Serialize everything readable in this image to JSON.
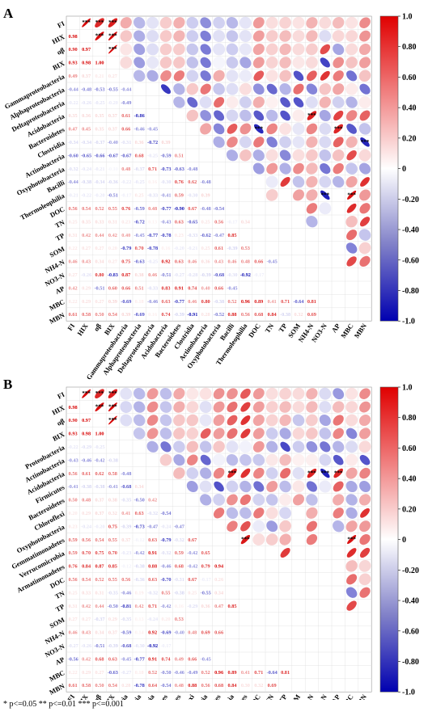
{
  "footnote": "* p<=0.05  ** p<=0.01  *** p<=0.001",
  "colors": {
    "positive": "#e00000",
    "negative": "#0000b0",
    "neutral": "#ffffff"
  },
  "chart_data": [
    {
      "type": "heatmap",
      "panel_label": "A",
      "style": "correlation matrix: lower triangle numeric coefficients, upper triangle ellipses",
      "variables": [
        "FI",
        "HIX",
        "αβ",
        "BIX",
        "Gammaproteobacteria",
        "Alphaproteobacteria",
        "Deltaproteobacteria",
        "Acidobacteria",
        "Bacteroidetes",
        "Clostridia",
        "Actinobacteria",
        "Oxyphotobacteria",
        "Bacilli",
        "Thermoleophilia",
        "DOC",
        "TN",
        "TP",
        "SOM",
        "NH4-N",
        "NO3-N",
        "AP",
        "MBC",
        "MBN"
      ],
      "colorbar": {
        "range": [
          -1,
          1
        ],
        "ticks": [
          "1.0",
          "0.80",
          "0.60",
          "0.40",
          "0.20",
          "0",
          "-0.20",
          "-0.40",
          "-0.60",
          "-0.80",
          "-1.0"
        ]
      },
      "lower_triangle": [
        [],
        [
          0.98
        ],
        [
          0.9,
          0.97
        ],
        [
          0.93,
          0.98,
          1.0
        ],
        [
          0.49,
          0.37,
          0.21,
          0.27
        ],
        [
          -0.44,
          -0.48,
          -0.53,
          -0.55,
          -0.44
        ],
        [
          -0.22,
          -0.26,
          -0.25,
          -0.2,
          -0.49
        ],
        [
          0.35,
          0.36,
          0.35,
          0.37,
          0.61,
          -0.86
        ],
        [
          0.47,
          0.45,
          0.35,
          0.37,
          0.66,
          -0.46,
          -0.45
        ],
        [
          -0.34,
          -0.34,
          -0.37,
          -0.4,
          -0.31,
          0.36,
          -0.72,
          0.39
        ],
        [
          -0.6,
          -0.65,
          -0.66,
          -0.67,
          -0.67,
          0.68,
          -0.25,
          -0.59,
          0.51
        ],
        [
          -0.32,
          -0.24,
          -0.21,
          -0.1,
          0.48,
          -0.37,
          0.71,
          -0.73,
          -0.63,
          -0.48
        ],
        [
          -0.44,
          -0.38,
          -0.34,
          -0.36,
          -0.22,
          -0.25,
          0.16,
          -0.3,
          0.76,
          0.62,
          -0.48
        ],
        [
          -0.21,
          -0.22,
          -0.2,
          -0.51,
          -0.17,
          0.25,
          -0.33,
          -0.41,
          0.59,
          -0.3,
          0.39
        ],
        [
          0.56,
          0.54,
          0.52,
          0.55,
          0.76,
          -0.59,
          0.48,
          -0.77,
          -0.9,
          0.67,
          -0.48,
          -0.54
        ],
        [
          0.25,
          0.35,
          0.33,
          0.31,
          0.23,
          -0.72,
          0.13,
          -0.43,
          0.63,
          -0.65,
          0.25,
          0.56,
          -0.17,
          0.34
        ],
        [
          0.31,
          0.42,
          0.44,
          0.42,
          0.4,
          -0.45,
          -0.77,
          -0.78,
          0.23,
          -0.33,
          -0.62,
          -0.47,
          0.85
        ],
        [
          0.22,
          0.27,
          0.27,
          0.2,
          -0.79,
          0.7,
          -0.78,
          0.16,
          -0.2,
          -0.21,
          0.25,
          0.61,
          -0.39,
          0.53
        ],
        [
          0.46,
          0.43,
          0.34,
          0.27,
          0.75,
          -0.63,
          -0.25,
          0.92,
          0.63,
          0.46,
          0.36,
          0.43,
          0.46,
          0.48,
          0.66,
          -0.45
        ],
        [
          0.27,
          -0.26,
          0.8,
          -0.83,
          0.87,
          0.38,
          0.46,
          -0.51,
          -0.27,
          -0.28,
          -0.39,
          -0.68,
          -0.3,
          -0.92,
          -0.17
        ],
        [
          0.42,
          0.29,
          -0.51,
          0.6,
          0.66,
          0.51,
          -0.33,
          0.83,
          0.91,
          0.74,
          0.4,
          0.66,
          -0.45
        ],
        [
          0.22,
          0.29,
          0.27,
          0.39,
          -0.69,
          0.18,
          -0.46,
          0.63,
          -0.77,
          0.46,
          0.8,
          -0.38,
          0.52,
          0.96,
          0.89,
          0.41,
          0.71,
          -0.64,
          0.81
        ],
        [
          0.61,
          0.58,
          0.5,
          0.54,
          0.39,
          -0.69,
          0.16,
          0.74,
          -0.39,
          -0.91,
          0.28,
          -0.52,
          0.88,
          0.56,
          0.68,
          0.84,
          -0.38,
          0.32,
          0.69
        ]
      ]
    },
    {
      "type": "heatmap",
      "panel_label": "B",
      "style": "correlation matrix: lower triangle numeric coefficients, upper triangle ellipses",
      "variables": [
        "FI",
        "HIX",
        "αβ",
        "BIX",
        "Proteobacteria",
        "Actinobacteria",
        "Acidobacteria",
        "Firmicutes",
        "Bacteroidetes",
        "Chloroflexi",
        "Oxyphotobacteria",
        "Gemmatimonadetes",
        "Verrucomicrobia",
        "Armatimonadetes",
        "DOC",
        "TN",
        "TP",
        "SOM",
        "NH4-N",
        "NO3-N",
        "AP",
        "MBC",
        "MBN"
      ],
      "colorbar": {
        "range": [
          -1,
          1
        ],
        "ticks": [
          "1.0",
          "0.80",
          "0.60",
          "0.40",
          "0.20",
          "0",
          "-0.20",
          "-0.40",
          "-0.60",
          "-0.80",
          "-1.0"
        ]
      },
      "lower_triangle": [
        [],
        [
          0.98
        ],
        [
          0.9,
          0.97
        ],
        [
          0.93,
          0.98,
          1.0
        ],
        [
          -0.22,
          -0.29,
          -0.25
        ],
        [
          -0.43,
          -0.46,
          -0.42,
          -0.38
        ],
        [
          0.56,
          0.61,
          0.62,
          0.58,
          -0.48
        ],
        [
          -0.41,
          -0.38,
          -0.38,
          -0.41,
          -0.68,
          0.34
        ],
        [
          0.5,
          0.48,
          0.37,
          0.38,
          -0.35,
          -0.5,
          0.42
        ],
        [
          0.2,
          0.29,
          0.37,
          0.32,
          0.41,
          0.63,
          -0.32,
          -0.54
        ],
        [
          0.23,
          -0.24,
          -0.2,
          0.75,
          -0.39,
          -0.73,
          -0.47,
          -0.24,
          -0.47
        ],
        [
          0.59,
          0.56,
          0.54,
          0.55,
          0.37,
          -0.12,
          0.63,
          -0.79,
          -0.32,
          0.67
        ],
        [
          0.59,
          0.7,
          0.75,
          0.7,
          -0.23,
          -0.42,
          0.91,
          -0.32,
          0.59,
          -0.42,
          0.65
        ],
        [
          0.76,
          0.84,
          0.87,
          0.85,
          -0.12,
          -0.38,
          0.88,
          -0.46,
          0.68,
          -0.42,
          0.79,
          0.94
        ],
        [
          0.56,
          0.54,
          0.52,
          0.55,
          0.56,
          -0.36,
          0.63,
          -0.7,
          -0.31,
          0.67,
          -0.17,
          0.26
        ],
        [
          0.25,
          0.33,
          0.31,
          -0.35,
          -0.46,
          0.19,
          -0.32,
          0.55,
          -0.38,
          0.25,
          -0.55,
          0.34
        ],
        [
          0.31,
          0.42,
          0.44,
          -0.5,
          -0.81,
          0.42,
          0.71,
          -0.42,
          0.16,
          -0.29,
          0.36,
          0.47,
          0.85
        ],
        [
          0.27,
          0.27,
          -0.37,
          0.29,
          -0.35,
          0.13,
          -0.24,
          0.2,
          0.53
        ],
        [
          0.46,
          0.43,
          0.34,
          0.37,
          -0.59,
          0.14,
          0.92,
          -0.69,
          -0.4,
          0.48,
          0.69,
          0.66
        ],
        [
          -0.27,
          -0.26,
          -0.51,
          -0.39,
          -0.68,
          -0.3,
          -0.92,
          -0.17
        ],
        [
          -0.56,
          0.42,
          0.68,
          0.63,
          -0.45,
          -0.77,
          0.91,
          0.74,
          0.49,
          0.66,
          -0.45
        ],
        [
          0.22,
          0.29,
          0.27,
          -0.63,
          -0.27,
          0.18,
          0.52,
          -0.5,
          -0.46,
          -0.49,
          0.52,
          0.96,
          0.89,
          0.41,
          0.71,
          -0.64,
          0.81
        ],
        [
          0.61,
          0.58,
          0.5,
          0.54,
          0.28,
          -0.78,
          0.64,
          -0.54,
          0.48,
          0.88,
          0.56,
          0.68,
          0.84,
          0.3,
          0.32,
          0.69
        ]
      ]
    }
  ]
}
